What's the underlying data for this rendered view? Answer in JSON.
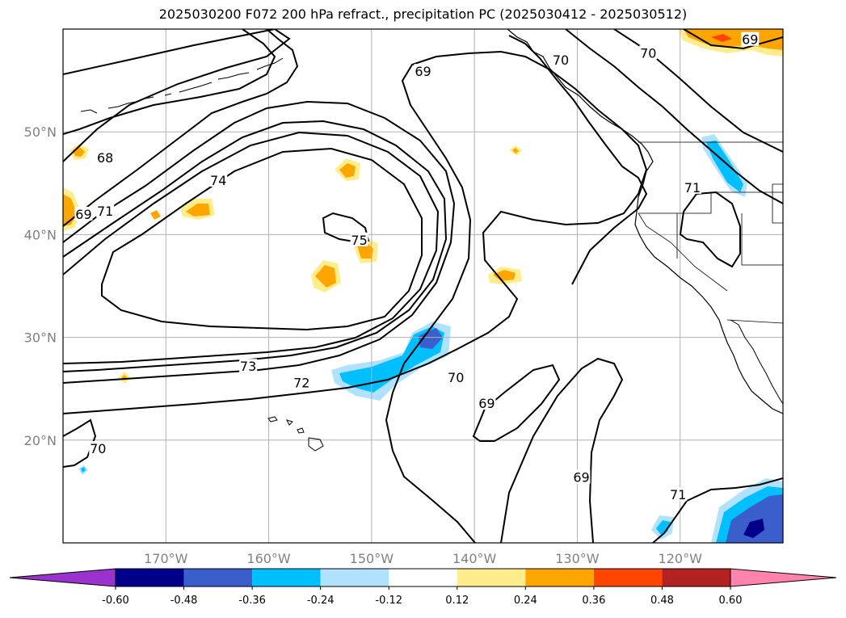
{
  "title": "2025030200 F072 200 hPa refract., precipitation PC (2025030412 - 2025030512)",
  "map": {
    "lon_range": [
      -180,
      -110
    ],
    "lat_range": [
      10,
      60
    ],
    "lat_ticks": [
      {
        "value": 50,
        "label": "50°N"
      },
      {
        "value": 40,
        "label": "40°N"
      },
      {
        "value": 30,
        "label": "30°N"
      },
      {
        "value": 20,
        "label": "20°N"
      }
    ],
    "lon_ticks": [
      {
        "value": -170,
        "label": "170°W"
      },
      {
        "value": -160,
        "label": "160°W"
      },
      {
        "value": -150,
        "label": "150°W"
      },
      {
        "value": -140,
        "label": "140°W"
      },
      {
        "value": -130,
        "label": "130°W"
      },
      {
        "value": -120,
        "label": "120°W"
      }
    ],
    "contour_labels": [
      {
        "text": "69",
        "lon": -145.0,
        "lat": 55.9
      },
      {
        "text": "70",
        "lon": -131.6,
        "lat": 57.0
      },
      {
        "text": "70",
        "lon": -123.1,
        "lat": 57.7
      },
      {
        "text": "69",
        "lon": -113.2,
        "lat": 59.0
      },
      {
        "text": "68",
        "lon": -175.9,
        "lat": 47.5
      },
      {
        "text": "74",
        "lon": -164.9,
        "lat": 45.3
      },
      {
        "text": "71",
        "lon": -118.8,
        "lat": 44.6
      },
      {
        "text": "69",
        "lon": -178.0,
        "lat": 42.0
      },
      {
        "text": "71",
        "lon": -175.9,
        "lat": 42.3
      },
      {
        "text": "75",
        "lon": -151.2,
        "lat": 39.5
      },
      {
        "text": "73",
        "lon": -162.0,
        "lat": 27.2
      },
      {
        "text": "72",
        "lon": -156.8,
        "lat": 25.6
      },
      {
        "text": "70",
        "lon": -141.8,
        "lat": 26.1
      },
      {
        "text": "69",
        "lon": -138.8,
        "lat": 23.6
      },
      {
        "text": "70",
        "lon": -176.6,
        "lat": 19.2
      },
      {
        "text": "69",
        "lon": -129.6,
        "lat": 16.4
      },
      {
        "text": "71",
        "lon": -120.2,
        "lat": 14.7
      }
    ]
  },
  "colorbar": {
    "labels": [
      "-0.60",
      "-0.48",
      "-0.36",
      "-0.24",
      "-0.12",
      "0.12",
      "0.24",
      "0.36",
      "0.48",
      "0.60"
    ],
    "colors": [
      "#9a32cd",
      "#00008b",
      "#3a5fcd",
      "#00bfff",
      "#b0e2ff",
      "#ffffff",
      "#ffec8b",
      "#ffa500",
      "#ff4500",
      "#b22222",
      "#ff83ac"
    ]
  }
}
